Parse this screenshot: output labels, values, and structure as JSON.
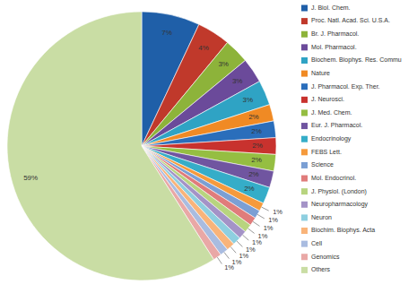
{
  "chart_data": {
    "type": "pie",
    "categories": [
      "J. Biol. Chem.",
      "Proc. Natl. Acad. Sci. U.S.A.",
      "Br. J. Pharmacol.",
      "Mol. Pharmacol.",
      "Biochem. Biophys. Res. Commu",
      "Nature",
      "J. Pharmacol. Exp. Ther.",
      "J. Neurosci.",
      "J. Med. Chem.",
      "Eur. J. Pharmacol.",
      "Endocrinology",
      "FEBS Lett.",
      "Science",
      "Mol. Endocrinol.",
      "J. Physiol. (London)",
      "Neuropharmacology",
      "Neuron",
      "Biochim. Biophys. Acta",
      "Cell",
      "Genomics",
      "Others"
    ],
    "values": [
      7,
      4,
      3,
      3,
      3,
      2,
      2,
      2,
      2,
      2,
      2,
      1,
      1,
      1,
      1,
      1,
      1,
      1,
      1,
      1,
      59
    ],
    "value_labels": [
      "7%",
      "4%",
      "3%",
      "3%",
      "3%",
      "2%",
      "2%",
      "2%",
      "2%",
      "2%",
      "2%",
      "1%",
      "1%",
      "1%",
      "1%",
      "1%",
      "1%",
      "1%",
      "1%",
      "1%",
      "59%"
    ],
    "colors": [
      "#1f5fa8",
      "#c0392b",
      "#8db33a",
      "#6b4a9a",
      "#2fa3c4",
      "#f08a24",
      "#2a6ebb",
      "#c8322e",
      "#95be42",
      "#7055a0",
      "#35adc8",
      "#f59a3c",
      "#7b9fd4",
      "#e07c7b",
      "#b8d47f",
      "#a493c7",
      "#8ecfe0",
      "#f9b47a",
      "#a9bce0",
      "#e9a8a6",
      "#c9dda4"
    ],
    "data_labels": true,
    "legend": "right"
  }
}
